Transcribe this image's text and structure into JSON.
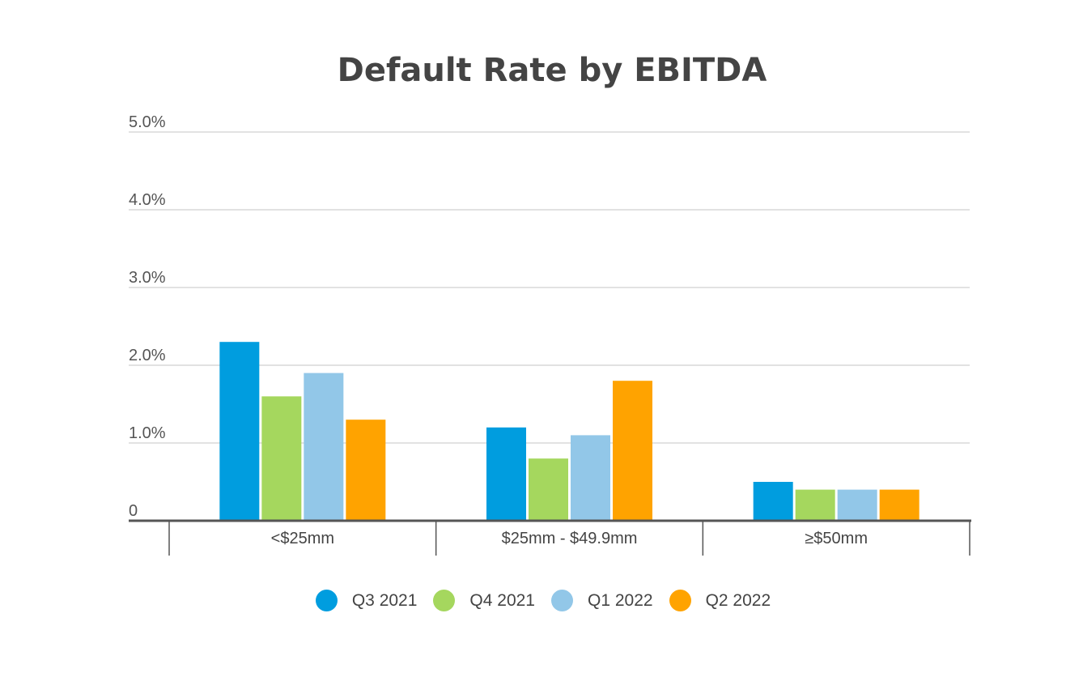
{
  "chart_data": {
    "type": "bar",
    "title": "Default Rate by EBITDA",
    "categories": [
      "<$25mm",
      "$25mm - $49.9mm",
      "≥$50mm"
    ],
    "series": [
      {
        "name": "Q3 2021",
        "color": "#009ddf",
        "values": [
          2.3,
          1.2,
          0.5
        ]
      },
      {
        "name": "Q4 2021",
        "color": "#a5d75e",
        "values": [
          1.6,
          0.8,
          0.4
        ]
      },
      {
        "name": "Q1 2022",
        "color": "#92c7e8",
        "values": [
          1.9,
          1.1,
          0.4
        ]
      },
      {
        "name": "Q2 2022",
        "color": "#ffa300",
        "values": [
          1.3,
          1.8,
          0.4
        ]
      }
    ],
    "ylim": [
      0,
      5.0
    ],
    "yticks": [
      0,
      1.0,
      2.0,
      3.0,
      4.0,
      5.0
    ],
    "ytick_labels": [
      "0",
      "1.0%",
      "2.0%",
      "3.0%",
      "4.0%",
      "5.0%"
    ],
    "xlabel": "",
    "ylabel": "",
    "grid": true,
    "legend_position": "bottom"
  }
}
